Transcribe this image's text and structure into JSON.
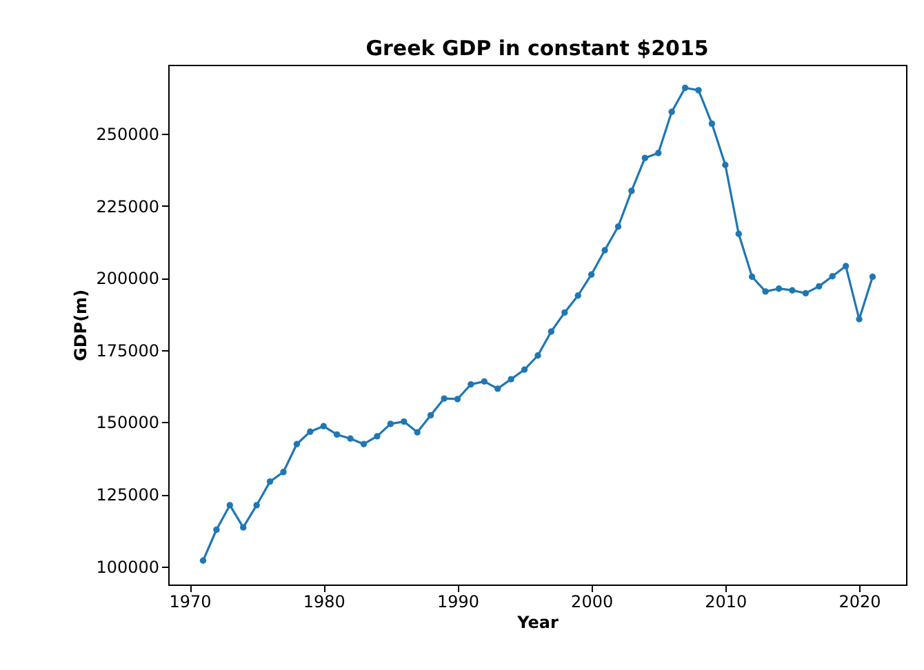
{
  "chart_data": {
    "type": "line",
    "title": "Greek GDP in constant $2015",
    "xlabel": "Year",
    "ylabel": "GDP(m)",
    "x": [
      1971,
      1972,
      1973,
      1974,
      1975,
      1976,
      1977,
      1978,
      1979,
      1980,
      1981,
      1982,
      1983,
      1984,
      1985,
      1986,
      1987,
      1988,
      1989,
      1990,
      1991,
      1992,
      1993,
      1994,
      1995,
      1996,
      1997,
      1998,
      1999,
      2000,
      2001,
      2002,
      2003,
      2004,
      2005,
      2006,
      2007,
      2008,
      2009,
      2010,
      2011,
      2012,
      2013,
      2014,
      2015,
      2016,
      2017,
      2018,
      2019,
      2020,
      2021
    ],
    "series": [
      {
        "color": "#1f77b4",
        "values": [
          102000,
          112700,
          121200,
          113500,
          121200,
          129400,
          132700,
          142400,
          146700,
          148600,
          145700,
          144300,
          142400,
          145100,
          149400,
          150200,
          146500,
          152400,
          158200,
          158000,
          163100,
          164100,
          161600,
          164900,
          168200,
          173100,
          181400,
          188000,
          193900,
          201200,
          209600,
          217800,
          230200,
          241600,
          243300,
          257600,
          265900,
          265100,
          253500,
          239200,
          215300,
          200400,
          195300,
          196300,
          195700,
          194700,
          197100,
          200600,
          204100,
          185700,
          200400
        ]
      }
    ],
    "xlim": [
      1968.4,
      2023.5
    ],
    "xticks": [
      1970,
      1980,
      1990,
      2000,
      2010,
      2020
    ],
    "ylim": [
      93700,
      273900
    ],
    "yticks": [
      100000,
      125000,
      150000,
      175000,
      200000,
      225000,
      250000
    ],
    "marker": "circle",
    "line_style": "solid",
    "grid": false,
    "legend": false
  }
}
